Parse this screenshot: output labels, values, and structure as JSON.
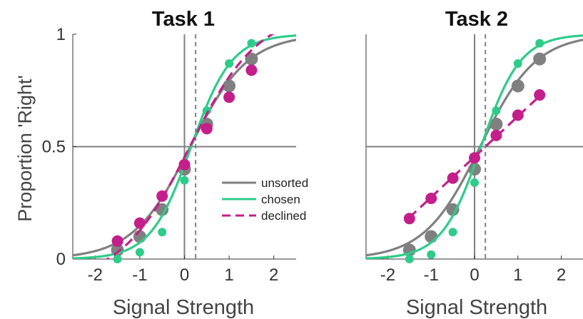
{
  "chart_data": [
    {
      "type": "line",
      "title": "Task 1",
      "xlabel": "Signal Strength",
      "ylabel": "Proportion 'Right'",
      "xlim": [
        -2.5,
        2.5
      ],
      "ylim": [
        0,
        1
      ],
      "xticks": [
        "-2",
        "-1",
        "0",
        "1",
        "2"
      ],
      "yticks": [
        "0",
        "0.5",
        "1"
      ],
      "grid": false,
      "legend": {
        "placement": "center-right",
        "entries": [
          "unsorted",
          "chosen",
          "declined"
        ]
      },
      "reference_lines": {
        "x_solid": 0,
        "x_dashed": 0.25,
        "y_solid": 0.5
      },
      "series": [
        {
          "name": "unsorted",
          "color": "#808080",
          "line_style": "solid",
          "x": [
            -1.5,
            -1.0,
            -0.5,
            0.0,
            0.5,
            1.0,
            1.5
          ],
          "y": [
            0.04,
            0.1,
            0.22,
            0.4,
            0.6,
            0.77,
            0.89
          ],
          "fit": {
            "mid": 0.13,
            "slope": 1.55,
            "lo": 0.0,
            "hi": 1.0
          }
        },
        {
          "name": "chosen",
          "color": "#2ecc8a",
          "line_style": "solid",
          "x": [
            -1.5,
            -1.0,
            -0.5,
            0.0,
            0.5,
            1.0,
            1.5
          ],
          "y": [
            0.0,
            0.03,
            0.12,
            0.35,
            0.66,
            0.87,
            0.96
          ],
          "fit": {
            "mid": 0.15,
            "slope": 2.2,
            "lo": 0.0,
            "hi": 1.0
          }
        },
        {
          "name": "declined",
          "color": "#c41e8a",
          "line_style": "dashed",
          "x": [
            -1.5,
            -1.0,
            -0.5,
            0.0,
            0.5,
            1.0,
            1.5
          ],
          "y": [
            0.08,
            0.16,
            0.28,
            0.42,
            0.58,
            0.72,
            0.84
          ],
          "fit": {
            "mid": 0.12,
            "slope": 1.3,
            "lo": -0.1,
            "hi": 1.1
          }
        }
      ]
    },
    {
      "type": "line",
      "title": "Task 2",
      "xlabel": "Signal Strength",
      "ylabel": "",
      "xlim": [
        -2.5,
        2.5
      ],
      "ylim": [
        0,
        1
      ],
      "xticks": [
        "-2",
        "-1",
        "0",
        "1",
        "2"
      ],
      "yticks": [],
      "grid": false,
      "reference_lines": {
        "x_solid": 0,
        "x_dashed": 0.25,
        "y_solid": 0.5
      },
      "series": [
        {
          "name": "unsorted",
          "color": "#808080",
          "line_style": "solid",
          "x": [
            -1.5,
            -1.0,
            -0.5,
            0.0,
            0.5,
            1.0,
            1.5
          ],
          "y": [
            0.04,
            0.1,
            0.22,
            0.4,
            0.6,
            0.77,
            0.89
          ],
          "fit": {
            "mid": 0.13,
            "slope": 1.55,
            "lo": 0.0,
            "hi": 1.0
          }
        },
        {
          "name": "chosen",
          "color": "#2ecc8a",
          "line_style": "solid",
          "x": [
            -1.5,
            -1.0,
            -0.5,
            0.0,
            0.5,
            1.0,
            1.5
          ],
          "y": [
            0.0,
            0.02,
            0.12,
            0.34,
            0.66,
            0.87,
            0.96
          ],
          "fit": {
            "mid": 0.15,
            "slope": 2.2,
            "lo": 0.0,
            "hi": 1.0
          }
        },
        {
          "name": "declined",
          "color": "#c41e8a",
          "line_style": "dashed",
          "x": [
            -1.5,
            -1.0,
            -0.5,
            0.0,
            0.5,
            1.0,
            1.5
          ],
          "y": [
            0.18,
            0.27,
            0.36,
            0.45,
            0.55,
            0.64,
            0.73
          ],
          "fit": {
            "line": true,
            "intercept": 0.455,
            "slope": 0.18
          }
        }
      ]
    }
  ]
}
